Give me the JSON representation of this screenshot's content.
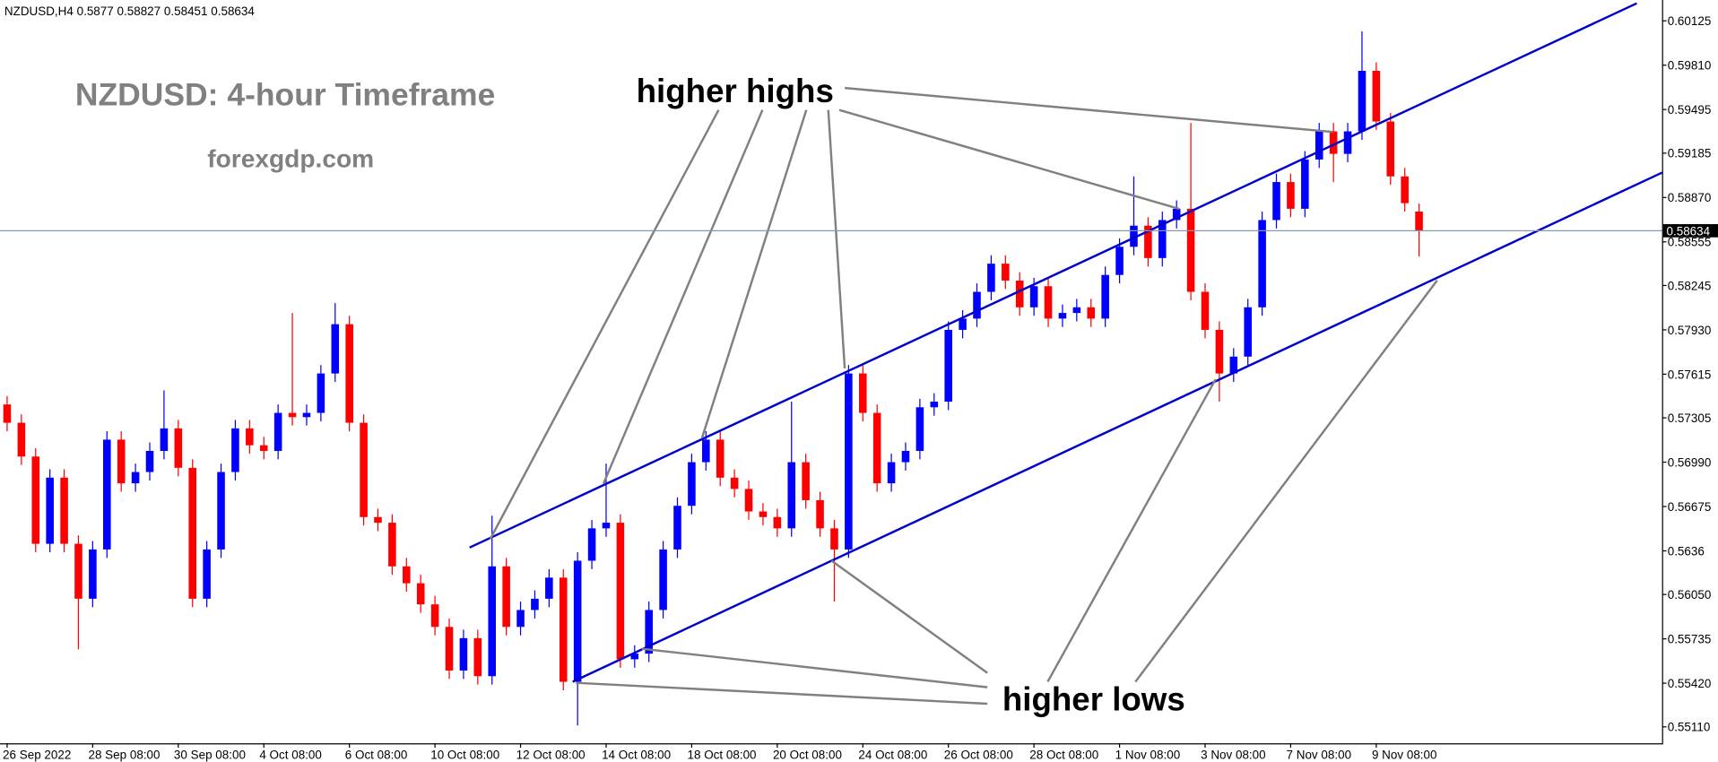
{
  "header": {
    "symbol": "NZDUSD,H4"
  },
  "chart_data": {
    "type": "candlestick",
    "title": "NZDUSD: 4-hour Timeframe",
    "subtitle": "forexgdp.com",
    "annotations": [
      "higher highs",
      "higher lows"
    ],
    "up_color": "#0000ff",
    "down_color": "#ff0000",
    "open": [
      0.574,
      0.5727,
      0.5703,
      0.5641,
      0.5688,
      0.5641,
      0.5602,
      0.5637,
      0.5715,
      0.5684,
      0.5692,
      0.5707,
      0.5723,
      0.5695,
      0.5602,
      0.5637,
      0.5692,
      0.5723,
      0.5711,
      0.5707,
      0.5734,
      0.5731,
      0.5734,
      0.5762,
      0.5797,
      0.5727,
      0.566,
      0.5656,
      0.5625,
      0.5613,
      0.5598,
      0.5582,
      0.5551,
      0.5574,
      0.5547,
      0.5625,
      0.5582,
      0.5594,
      0.5602,
      0.5617,
      0.5543,
      0.5629,
      0.5652,
      0.5656,
      0.5559,
      0.5563,
      0.5594,
      0.5637,
      0.5668,
      0.5699,
      0.5715,
      0.5688,
      0.568,
      0.5664,
      0.566,
      0.5652,
      0.5699,
      0.5672,
      0.5652,
      0.5637,
      0.5762,
      0.5734,
      0.5684,
      0.5699,
      0.5707,
      0.5738,
      0.5742,
      0.5793,
      0.5801,
      0.582,
      0.584,
      0.5828,
      0.5809,
      0.5824,
      0.5801,
      0.5805,
      0.5809,
      0.5801,
      0.5832,
      0.5852,
      0.5867,
      0.5844,
      0.5871,
      0.5879,
      0.582,
      0.5793,
      0.5762,
      0.5774,
      0.5809,
      0.5871,
      0.5898,
      0.5879,
      0.5914,
      0.5934,
      0.5918,
      0.5934,
      0.5977,
      0.5941,
      0.5902,
      0.5877
    ],
    "high": [
      0.5746,
      0.5733,
      0.5709,
      0.5694,
      0.5694,
      0.5647,
      0.5643,
      0.5721,
      0.5721,
      0.5698,
      0.5713,
      0.575,
      0.5729,
      0.5701,
      0.5643,
      0.5698,
      0.5729,
      0.5729,
      0.5717,
      0.574,
      0.5805,
      0.574,
      0.5768,
      0.5812,
      0.5803,
      0.5733,
      0.5666,
      0.5662,
      0.5631,
      0.5619,
      0.5604,
      0.5588,
      0.558,
      0.558,
      0.5661,
      0.5631,
      0.56,
      0.5608,
      0.5623,
      0.5623,
      0.5635,
      0.5658,
      0.5698,
      0.5662,
      0.5569,
      0.56,
      0.5643,
      0.5674,
      0.5705,
      0.5721,
      0.5721,
      0.5694,
      0.5686,
      0.567,
      0.5666,
      0.5742,
      0.5705,
      0.5678,
      0.5658,
      0.5768,
      0.5768,
      0.574,
      0.5705,
      0.5713,
      0.5744,
      0.5748,
      0.5799,
      0.5807,
      0.5826,
      0.5846,
      0.5846,
      0.5834,
      0.583,
      0.583,
      0.5811,
      0.5815,
      0.5815,
      0.5838,
      0.5858,
      0.5902,
      0.5873,
      0.5877,
      0.5885,
      0.594,
      0.5826,
      0.5799,
      0.578,
      0.5815,
      0.5877,
      0.5904,
      0.5904,
      0.592,
      0.594,
      0.594,
      0.594,
      0.6005,
      0.5983,
      0.5947,
      0.5908,
      0.58827
    ],
    "low": [
      0.5721,
      0.5697,
      0.5635,
      0.5635,
      0.5635,
      0.5566,
      0.5596,
      0.5631,
      0.5678,
      0.5678,
      0.5686,
      0.5701,
      0.5689,
      0.5596,
      0.5596,
      0.5631,
      0.5686,
      0.5705,
      0.5701,
      0.5701,
      0.5725,
      0.5725,
      0.5728,
      0.5756,
      0.5721,
      0.5654,
      0.565,
      0.5619,
      0.5607,
      0.5592,
      0.5576,
      0.5545,
      0.5545,
      0.5541,
      0.5541,
      0.5576,
      0.5576,
      0.5588,
      0.5596,
      0.5537,
      0.5512,
      0.5623,
      0.5646,
      0.5553,
      0.5553,
      0.5557,
      0.5588,
      0.5631,
      0.5662,
      0.5693,
      0.5682,
      0.5674,
      0.5658,
      0.5654,
      0.5646,
      0.5646,
      0.5666,
      0.5646,
      0.56,
      0.5631,
      0.5728,
      0.5678,
      0.5678,
      0.5693,
      0.5701,
      0.5732,
      0.5736,
      0.5787,
      0.5795,
      0.5814,
      0.5822,
      0.5803,
      0.5803,
      0.5795,
      0.5795,
      0.5799,
      0.5795,
      0.5795,
      0.5826,
      0.5846,
      0.5838,
      0.5838,
      0.5865,
      0.5814,
      0.5787,
      0.5742,
      0.5756,
      0.5768,
      0.5803,
      0.5865,
      0.5873,
      0.5873,
      0.5908,
      0.5898,
      0.5912,
      0.5928,
      0.5935,
      0.5896,
      0.5877,
      0.58451
    ],
    "close": [
      0.5727,
      0.5703,
      0.5641,
      0.5688,
      0.5641,
      0.5602,
      0.5637,
      0.5715,
      0.5684,
      0.5692,
      0.5707,
      0.5723,
      0.5695,
      0.5602,
      0.5637,
      0.5692,
      0.5723,
      0.5711,
      0.5707,
      0.5734,
      0.5731,
      0.5734,
      0.5762,
      0.5797,
      0.5727,
      0.566,
      0.5656,
      0.5625,
      0.5613,
      0.5598,
      0.5582,
      0.5551,
      0.5574,
      0.5547,
      0.5625,
      0.5582,
      0.5594,
      0.5602,
      0.5617,
      0.5543,
      0.5629,
      0.5652,
      0.5656,
      0.5559,
      0.5563,
      0.5594,
      0.5637,
      0.5668,
      0.5699,
      0.5715,
      0.5688,
      0.568,
      0.5664,
      0.566,
      0.5652,
      0.5699,
      0.5672,
      0.5652,
      0.5637,
      0.5762,
      0.5734,
      0.5684,
      0.5699,
      0.5707,
      0.5738,
      0.5742,
      0.5793,
      0.5801,
      0.582,
      0.584,
      0.5828,
      0.5809,
      0.5824,
      0.5801,
      0.5805,
      0.5809,
      0.5801,
      0.5832,
      0.5852,
      0.5867,
      0.5844,
      0.5871,
      0.5879,
      0.582,
      0.5793,
      0.5762,
      0.5774,
      0.5809,
      0.5871,
      0.5898,
      0.5879,
      0.5914,
      0.5934,
      0.5918,
      0.5934,
      0.5977,
      0.5941,
      0.5902,
      0.5883,
      0.58634
    ],
    "xlim": [
      -0.5,
      116.04
    ],
    "xticks": [
      {
        "value": 0,
        "label": "26 Sep 2022"
      },
      {
        "value": 6,
        "label": "28 Sep 08:00"
      },
      {
        "value": 12,
        "label": "30 Sep 08:00"
      },
      {
        "value": 18,
        "label": "4 Oct 08:00"
      },
      {
        "value": 24,
        "label": "6 Oct 08:00"
      },
      {
        "value": 30,
        "label": "10 Oct 08:00"
      },
      {
        "value": 36,
        "label": "12 Oct 08:00"
      },
      {
        "value": 42,
        "label": "14 Oct 08:00"
      },
      {
        "value": 48,
        "label": "18 Oct 08:00"
      },
      {
        "value": 54,
        "label": "20 Oct 08:00"
      },
      {
        "value": 60,
        "label": "24 Oct 08:00"
      },
      {
        "value": 66,
        "label": "26 Oct 08:00"
      },
      {
        "value": 72,
        "label": "28 Oct 08:00"
      },
      {
        "value": 78,
        "label": "1 Nov 08:00"
      },
      {
        "value": 84,
        "label": "3 Nov 08:00"
      },
      {
        "value": 90,
        "label": "7 Nov 08:00"
      },
      {
        "value": 96,
        "label": "9 Nov 08:00"
      }
    ],
    "ylim": [
      0.54993,
      0.60273
    ],
    "yticks": [
      0.60125,
      {
        "value": 0.5981,
        "label": "0.59810"
      },
      0.59495,
      0.59185,
      {
        "value": 0.5887,
        "label": "0.58870"
      },
      0.58555,
      0.58245,
      {
        "value": 0.5793,
        "label": "0.57930"
      },
      0.57615,
      0.57305,
      {
        "value": 0.5699,
        "label": "0.56990"
      },
      0.56675,
      0.5636,
      {
        "value": 0.5605,
        "label": "0.56050"
      },
      0.55735,
      {
        "value": 0.5542,
        "label": "0.55420"
      },
      {
        "value": 0.5511,
        "label": "0.55110"
      }
    ],
    "grid": false
  }
}
